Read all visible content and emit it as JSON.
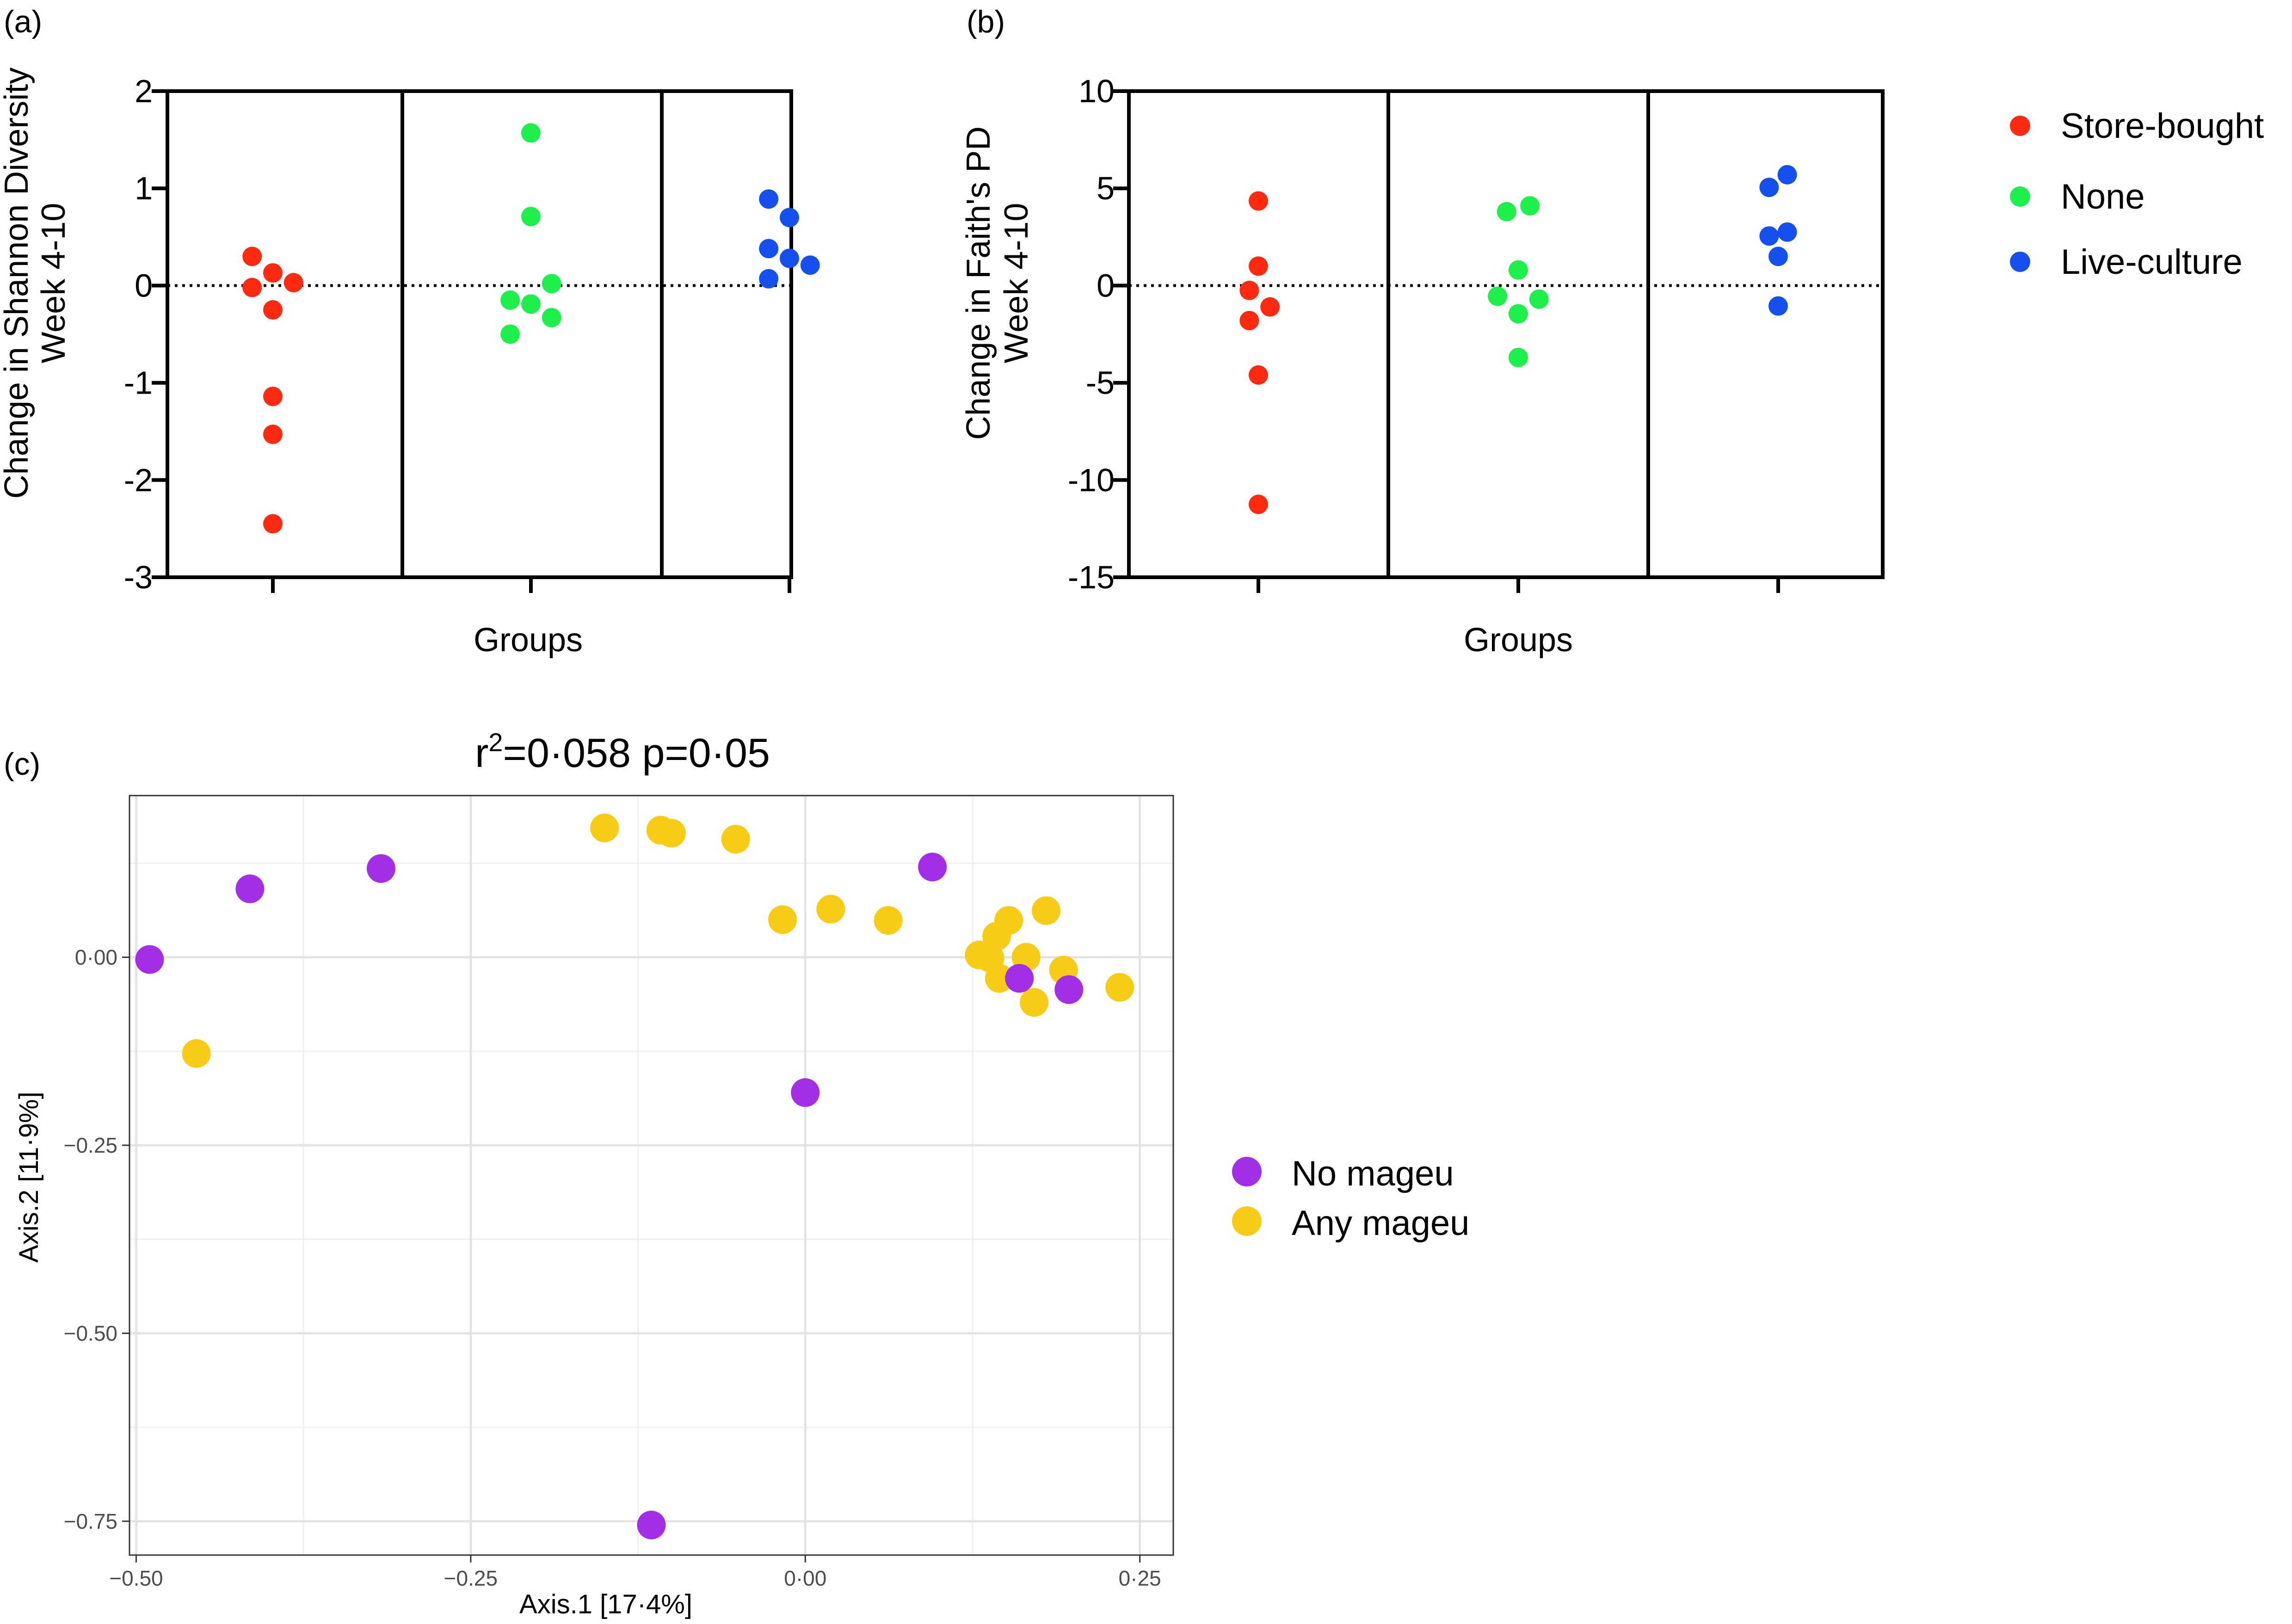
{
  "panel_labels": [
    "(a)",
    "(b)",
    "(c)"
  ],
  "legend_ab": {
    "entries": [
      {
        "label": "Store-bought",
        "color": "#ff2a12"
      },
      {
        "label": "None",
        "color": "#1df04a"
      },
      {
        "label": "Live-culture",
        "color": "#1450f0"
      }
    ]
  },
  "legend_c": {
    "entries": [
      {
        "label": "No mageu",
        "color": "#a22ee6"
      },
      {
        "label": "Any mageu",
        "color": "#f7cb16"
      }
    ]
  },
  "colors": {
    "store_bought": "#ff2a12",
    "none": "#1df04a",
    "live_culture": "#1450f0",
    "no_mageu": "#a22ee6",
    "any_mageu": "#f7cb16"
  },
  "chart_data": [
    {
      "type": "scatter",
      "ylabel_lines": [
        "Change in Shannon Diversity",
        "Week 4-10"
      ],
      "xlabel": "Groups",
      "ylim": [
        -3,
        2
      ],
      "yticks": [
        "2",
        "1",
        "0",
        "-1",
        "-2",
        "-3"
      ],
      "ytick_values": [
        2,
        1,
        0,
        -1,
        -2,
        -3
      ],
      "reference_line": 0,
      "groups": [
        "Store-bought",
        "None",
        "Live-culture"
      ],
      "series": [
        {
          "name": "Store-bought",
          "points": [
            [
              -0.16,
              0.3
            ],
            [
              -0.16,
              -0.02
            ],
            [
              0.0,
              0.13
            ],
            [
              0.0,
              -0.25
            ],
            [
              0.16,
              0.03
            ],
            [
              0.0,
              -1.14
            ],
            [
              0.0,
              -1.53
            ],
            [
              0.0,
              -2.45
            ]
          ]
        },
        {
          "name": "None",
          "points": [
            [
              0.0,
              1.57
            ],
            [
              0.0,
              0.71
            ],
            [
              0.16,
              0.02
            ],
            [
              -0.16,
              -0.15
            ],
            [
              0.0,
              -0.19
            ],
            [
              0.16,
              -0.33
            ],
            [
              -0.16,
              -0.5
            ]
          ]
        },
        {
          "name": "Live-culture",
          "points": [
            [
              -0.16,
              0.89
            ],
            [
              0.0,
              0.7
            ],
            [
              -0.16,
              0.38
            ],
            [
              0.0,
              0.28
            ],
            [
              0.16,
              0.21
            ],
            [
              -0.16,
              0.07
            ]
          ]
        }
      ]
    },
    {
      "type": "scatter",
      "ylabel_lines": [
        "Change in Faith's PD",
        "Week 4-10"
      ],
      "xlabel": "Groups",
      "ylim": [
        -15,
        10
      ],
      "yticks": [
        "10",
        "5",
        "0",
        "-5",
        "-10",
        "-15"
      ],
      "ytick_values": [
        10,
        5,
        0,
        -5,
        -10,
        -15
      ],
      "reference_line": 0,
      "groups": [
        "Store-bought",
        "None",
        "Live-culture"
      ],
      "series": [
        {
          "name": "Store-bought",
          "points": [
            [
              0.0,
              4.35
            ],
            [
              0.0,
              1.0
            ],
            [
              -0.07,
              -0.25
            ],
            [
              0.09,
              -1.1
            ],
            [
              -0.07,
              -1.8
            ],
            [
              0.0,
              -4.6
            ],
            [
              0.0,
              -11.25
            ]
          ]
        },
        {
          "name": "None",
          "points": [
            [
              -0.09,
              3.8
            ],
            [
              0.09,
              4.1
            ],
            [
              0.0,
              0.8
            ],
            [
              -0.16,
              -0.55
            ],
            [
              0.16,
              -0.7
            ],
            [
              0.0,
              -1.45
            ],
            [
              0.0,
              -3.7
            ]
          ]
        },
        {
          "name": "Live-culture",
          "points": [
            [
              -0.07,
              5.05
            ],
            [
              0.07,
              5.7
            ],
            [
              -0.07,
              2.55
            ],
            [
              0.07,
              2.75
            ],
            [
              0.0,
              1.5
            ],
            [
              0.0,
              -1.05
            ]
          ]
        }
      ]
    },
    {
      "type": "scatter",
      "title_main": "r",
      "title_sup": "2",
      "title_rest": "=0·058 p=0·05",
      "xlabel": "Axis.1   [17·4%]",
      "ylabel": "Axis.2   [11·9%]",
      "xlim": [
        -0.505,
        0.275
      ],
      "ylim": [
        -0.795,
        0.215
      ],
      "xticks": [
        "−0.50",
        "−0.25",
        "0·00",
        "0·25"
      ],
      "xtick_values": [
        -0.5,
        -0.25,
        0.0,
        0.25
      ],
      "yticks": [
        "0·00",
        "−0.25",
        "−0.50",
        "−0.75"
      ],
      "ytick_values": [
        0.0,
        -0.25,
        -0.5,
        -0.75
      ],
      "grid": true,
      "series": [
        {
          "name": "No mageu",
          "points": [
            [
              -0.49,
              -0.003
            ],
            [
              -0.415,
              0.091
            ],
            [
              -0.317,
              0.118
            ],
            [
              0.095,
              0.12
            ],
            [
              0.0,
              -0.18
            ],
            [
              0.16,
              -0.028
            ],
            [
              0.197,
              -0.043
            ],
            [
              -0.115,
              -0.755
            ]
          ]
        },
        {
          "name": "Any mageu",
          "points": [
            [
              -0.455,
              -0.128
            ],
            [
              -0.15,
              0.172
            ],
            [
              -0.108,
              0.169
            ],
            [
              -0.1,
              0.165
            ],
            [
              -0.052,
              0.157
            ],
            [
              -0.017,
              0.05
            ],
            [
              0.019,
              0.064
            ],
            [
              0.062,
              0.049
            ],
            [
              0.13,
              0.003
            ],
            [
              0.138,
              -0.001
            ],
            [
              0.143,
              0.028
            ],
            [
              0.152,
              0.049
            ],
            [
              0.145,
              -0.028
            ],
            [
              0.18,
              0.062
            ],
            [
              0.165,
              0.0
            ],
            [
              0.171,
              -0.06
            ],
            [
              0.193,
              -0.017
            ],
            [
              0.235,
              -0.04
            ]
          ]
        }
      ]
    }
  ]
}
